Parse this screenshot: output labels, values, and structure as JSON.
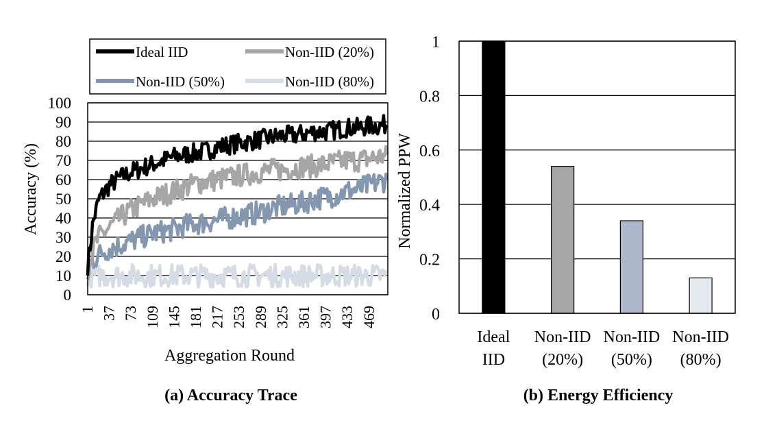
{
  "chart_data": [
    {
      "type": "line",
      "caption": "(a) Accuracy Trace",
      "xlabel": "Aggregation Round",
      "ylabel": "Accuracy (%)",
      "ylim": [
        0,
        100
      ],
      "yticks": [
        "0",
        "10",
        "20",
        "30",
        "40",
        "50",
        "60",
        "70",
        "80",
        "90",
        "100"
      ],
      "xticks": [
        "1",
        "37",
        "73",
        "109",
        "145",
        "181",
        "217",
        "253",
        "289",
        "325",
        "361",
        "397",
        "433",
        "469"
      ],
      "xlim": [
        1,
        500
      ],
      "grid": "horizontal",
      "legend_position": "top",
      "series": [
        {
          "name": "Ideal IID",
          "color": "#000000",
          "x": [
            1,
            10,
            20,
            37,
            55,
            73,
            91,
            109,
            127,
            145,
            163,
            181,
            199,
            217,
            235,
            253,
            271,
            289,
            307,
            325,
            343,
            361,
            379,
            397,
            415,
            433,
            451,
            469,
            487,
            500
          ],
          "y": [
            15,
            38,
            50,
            57,
            61,
            64,
            66,
            68,
            70,
            72,
            73,
            74,
            75,
            77,
            78,
            79,
            80,
            81,
            82,
            83,
            83,
            84,
            85,
            85,
            86,
            87,
            87,
            88,
            88,
            89
          ]
        },
        {
          "name": "Non-IID (20%)",
          "color": "#a6a6a6",
          "x": [
            1,
            10,
            20,
            37,
            55,
            73,
            91,
            109,
            127,
            145,
            163,
            181,
            199,
            217,
            235,
            253,
            271,
            289,
            307,
            325,
            343,
            361,
            379,
            397,
            415,
            433,
            451,
            469,
            487,
            500
          ],
          "y": [
            14,
            24,
            30,
            35,
            40,
            44,
            47,
            50,
            52,
            54,
            56,
            58,
            59,
            60,
            61,
            62,
            63,
            64,
            65,
            65,
            66,
            67,
            67,
            68,
            69,
            70,
            70,
            71,
            72,
            72
          ]
        },
        {
          "name": "Non-IID (50%)",
          "color": "#8497b0",
          "x": [
            1,
            10,
            20,
            37,
            55,
            73,
            91,
            109,
            127,
            145,
            163,
            181,
            199,
            217,
            235,
            253,
            271,
            289,
            307,
            325,
            343,
            361,
            379,
            397,
            415,
            433,
            451,
            469,
            487,
            500
          ],
          "y": [
            13,
            18,
            21,
            24,
            26,
            28,
            30,
            32,
            33,
            34,
            36,
            37,
            38,
            39,
            40,
            41,
            42,
            43,
            45,
            46,
            47,
            48,
            50,
            51,
            52,
            54,
            55,
            57,
            59,
            60
          ]
        },
        {
          "name": "Non-IID (80%)",
          "color": "#d6dce5",
          "x": [
            1,
            10,
            20,
            37,
            55,
            73,
            91,
            109,
            127,
            145,
            163,
            181,
            199,
            217,
            235,
            253,
            271,
            289,
            307,
            325,
            343,
            361,
            379,
            397,
            415,
            433,
            451,
            469,
            487,
            500
          ],
          "y": [
            10,
            10,
            10,
            10,
            10,
            10,
            10,
            10,
            10,
            10,
            10,
            10,
            10,
            10,
            10,
            10,
            10,
            10,
            10,
            10,
            10,
            10,
            10,
            10,
            10,
            10,
            10,
            10,
            10,
            10
          ]
        }
      ]
    },
    {
      "type": "bar",
      "caption": "(b) Energy Efficiency",
      "ylabel": "Normalized PPW",
      "ylim": [
        0,
        1
      ],
      "yticks": [
        "0",
        "0.2",
        "0.4",
        "0.6",
        "0.8",
        "1"
      ],
      "grid": "horizontal",
      "categories": [
        [
          "Ideal",
          "IID"
        ],
        [
          "Non-IID",
          "(20%)"
        ],
        [
          "Non-IID",
          "(50%)"
        ],
        [
          "Non-IID",
          "(80%)"
        ]
      ],
      "values": [
        1.0,
        0.54,
        0.34,
        0.13
      ],
      "colors": [
        "#000000",
        "#a6a6a6",
        "#adb9ca",
        "#e4e8ef"
      ]
    }
  ]
}
